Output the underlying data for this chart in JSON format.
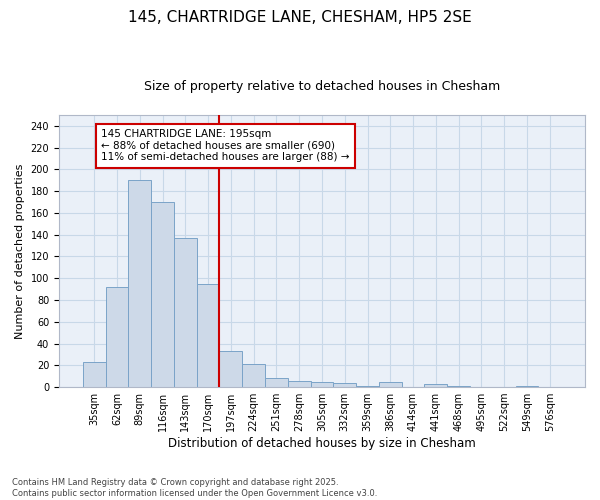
{
  "title1": "145, CHARTRIDGE LANE, CHESHAM, HP5 2SE",
  "title2": "Size of property relative to detached houses in Chesham",
  "xlabel": "Distribution of detached houses by size in Chesham",
  "ylabel": "Number of detached properties",
  "categories": [
    "35sqm",
    "62sqm",
    "89sqm",
    "116sqm",
    "143sqm",
    "170sqm",
    "197sqm",
    "224sqm",
    "251sqm",
    "278sqm",
    "305sqm",
    "332sqm",
    "359sqm",
    "386sqm",
    "414sqm",
    "441sqm",
    "468sqm",
    "495sqm",
    "522sqm",
    "549sqm",
    "576sqm"
  ],
  "values": [
    23,
    92,
    190,
    170,
    137,
    95,
    33,
    21,
    8,
    6,
    5,
    4,
    1,
    5,
    0,
    3,
    1,
    0,
    0,
    1,
    0
  ],
  "bar_color": "#cdd9e8",
  "bar_edge_color": "#7aa3c8",
  "vline_x_index": 6,
  "vline_color": "#cc0000",
  "annotation_text": "145 CHARTRIDGE LANE: 195sqm\n← 88% of detached houses are smaller (690)\n11% of semi-detached houses are larger (88) →",
  "annotation_box_color": "#ffffff",
  "annotation_box_edge_color": "#cc0000",
  "ylim": [
    0,
    250
  ],
  "yticks": [
    0,
    20,
    40,
    60,
    80,
    100,
    120,
    140,
    160,
    180,
    200,
    220,
    240
  ],
  "grid_color": "#c8d8e8",
  "background_color": "#eaf0f8",
  "footer_text": "Contains HM Land Registry data © Crown copyright and database right 2025.\nContains public sector information licensed under the Open Government Licence v3.0.",
  "title1_fontsize": 11,
  "title2_fontsize": 9,
  "xlabel_fontsize": 8.5,
  "ylabel_fontsize": 8,
  "tick_fontsize": 7,
  "annotation_fontsize": 7.5,
  "footer_fontsize": 6
}
